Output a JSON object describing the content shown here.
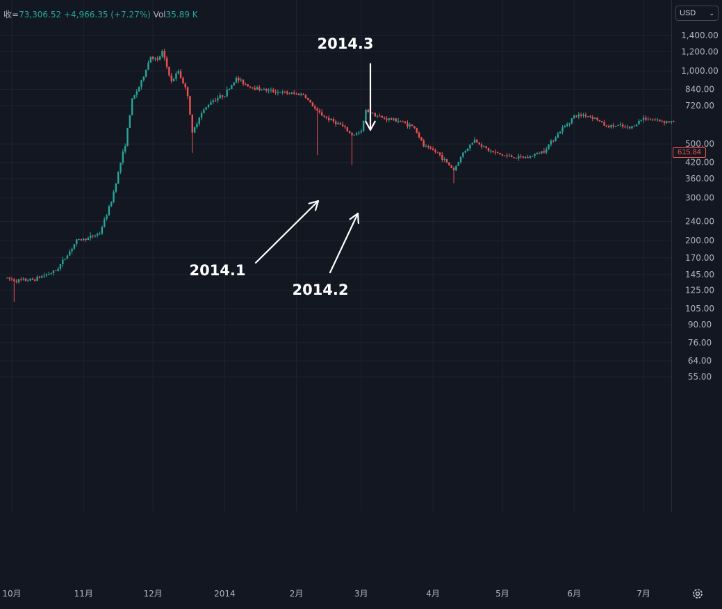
{
  "legend": {
    "close_label": "收=",
    "close_value": "73,306.52",
    "change": "+4,966.35",
    "change_pct": "(+7.27%)",
    "vol_label": "Vol",
    "vol_value": "35.89 K"
  },
  "currency": {
    "selected": "USD",
    "chevron_icon": "chevron-down-icon"
  },
  "last_price_label": "615.84",
  "colors": {
    "background": "#131722",
    "up": "#26a69a",
    "down": "#ef5350",
    "grid": "#1f2330",
    "axis_text": "#b2b5be"
  },
  "chart_data": {
    "type": "candlestick",
    "y_scale": "log",
    "y_range": [
      50,
      1500
    ],
    "y_ticks": [
      {
        "value": 1400,
        "label": "1,400.00"
      },
      {
        "value": 1200,
        "label": "1,200.00"
      },
      {
        "value": 1000,
        "label": "1,000.00"
      },
      {
        "value": 840,
        "label": "840.00"
      },
      {
        "value": 720,
        "label": "720.00"
      },
      {
        "value": 500,
        "label": "500.00"
      },
      {
        "value": 420,
        "label": "420.00"
      },
      {
        "value": 360,
        "label": "360.00"
      },
      {
        "value": 300,
        "label": "300.00"
      },
      {
        "value": 240,
        "label": "240.00"
      },
      {
        "value": 200,
        "label": "200.00"
      },
      {
        "value": 170,
        "label": "170.00"
      },
      {
        "value": 145,
        "label": "145.00"
      },
      {
        "value": 125,
        "label": "125.00"
      },
      {
        "value": 105,
        "label": "105.00"
      },
      {
        "value": 90,
        "label": "90.00"
      },
      {
        "value": 76,
        "label": "76.00"
      },
      {
        "value": 64,
        "label": "64.00"
      },
      {
        "value": 55,
        "label": "55.00"
      }
    ],
    "x_ticks": [
      {
        "date": "2013-10-01",
        "label": "10月"
      },
      {
        "date": "2013-11-01",
        "label": "11月"
      },
      {
        "date": "2013-12-01",
        "label": "12月"
      },
      {
        "date": "2014-01-01",
        "label": "2014"
      },
      {
        "date": "2014-02-01",
        "label": "2月"
      },
      {
        "date": "2014-03-01",
        "label": "3月"
      },
      {
        "date": "2014-04-01",
        "label": "4月"
      },
      {
        "date": "2014-05-01",
        "label": "5月"
      },
      {
        "date": "2014-06-01",
        "label": "6月"
      },
      {
        "date": "2014-07-01",
        "label": "7月"
      }
    ],
    "x_range": [
      "2013-09-29",
      "2014-07-14"
    ],
    "approx_close_path": [
      [
        "2013-09-29",
        140
      ],
      [
        "2013-10-03",
        137
      ],
      [
        "2013-10-10",
        138
      ],
      [
        "2013-10-20",
        150
      ],
      [
        "2013-10-25",
        175
      ],
      [
        "2013-10-29",
        200
      ],
      [
        "2013-11-03",
        205
      ],
      [
        "2013-11-08",
        215
      ],
      [
        "2013-11-13",
        290
      ],
      [
        "2013-11-17",
        420
      ],
      [
        "2013-11-19",
        500
      ],
      [
        "2013-11-22",
        760
      ],
      [
        "2013-11-26",
        900
      ],
      [
        "2013-11-30",
        1150
      ],
      [
        "2013-12-03",
        1100
      ],
      [
        "2013-12-05",
        1200
      ],
      [
        "2013-12-09",
        900
      ],
      [
        "2013-12-12",
        1000
      ],
      [
        "2013-12-16",
        800
      ],
      [
        "2013-12-18",
        550
      ],
      [
        "2013-12-21",
        650
      ],
      [
        "2013-12-26",
        750
      ],
      [
        "2014-01-01",
        800
      ],
      [
        "2014-01-06",
        930
      ],
      [
        "2014-01-12",
        860
      ],
      [
        "2014-01-20",
        830
      ],
      [
        "2014-01-28",
        810
      ],
      [
        "2014-02-04",
        800
      ],
      [
        "2014-02-10",
        680
      ],
      [
        "2014-02-14",
        640
      ],
      [
        "2014-02-20",
        600
      ],
      [
        "2014-02-25",
        545
      ],
      [
        "2014-03-01",
        560
      ],
      [
        "2014-03-03",
        690
      ],
      [
        "2014-03-10",
        640
      ],
      [
        "2014-03-17",
        625
      ],
      [
        "2014-03-24",
        585
      ],
      [
        "2014-03-28",
        490
      ],
      [
        "2014-04-03",
        460
      ],
      [
        "2014-04-10",
        390
      ],
      [
        "2014-04-14",
        460
      ],
      [
        "2014-04-19",
        520
      ],
      [
        "2014-04-25",
        470
      ],
      [
        "2014-05-01",
        450
      ],
      [
        "2014-05-07",
        440
      ],
      [
        "2014-05-12",
        440
      ],
      [
        "2014-05-19",
        470
      ],
      [
        "2014-05-22",
        510
      ],
      [
        "2014-05-27",
        580
      ],
      [
        "2014-06-01",
        650
      ],
      [
        "2014-06-05",
        660
      ],
      [
        "2014-06-10",
        640
      ],
      [
        "2014-06-15",
        590
      ],
      [
        "2014-06-20",
        595
      ],
      [
        "2014-06-25",
        580
      ],
      [
        "2014-07-01",
        640
      ],
      [
        "2014-07-05",
        630
      ],
      [
        "2014-07-10",
        620
      ],
      [
        "2014-07-14",
        615.84
      ]
    ],
    "notable_wicks": [
      {
        "date": "2013-10-02",
        "low": 112
      },
      {
        "date": "2013-12-18",
        "low": 460
      },
      {
        "date": "2014-02-10",
        "low": 450
      },
      {
        "date": "2014-02-25",
        "low": 410
      },
      {
        "date": "2014-04-10",
        "low": 345
      }
    ],
    "annotations": [
      {
        "text": "2014.1",
        "points_to_date": "2014-02-10",
        "points_to_price": 450
      },
      {
        "text": "2014.2",
        "points_to_date": "2014-02-25",
        "points_to_price": 410
      },
      {
        "text": "2014.3",
        "points_to_date": "2014-03-03",
        "points_to_price": 700
      }
    ]
  }
}
